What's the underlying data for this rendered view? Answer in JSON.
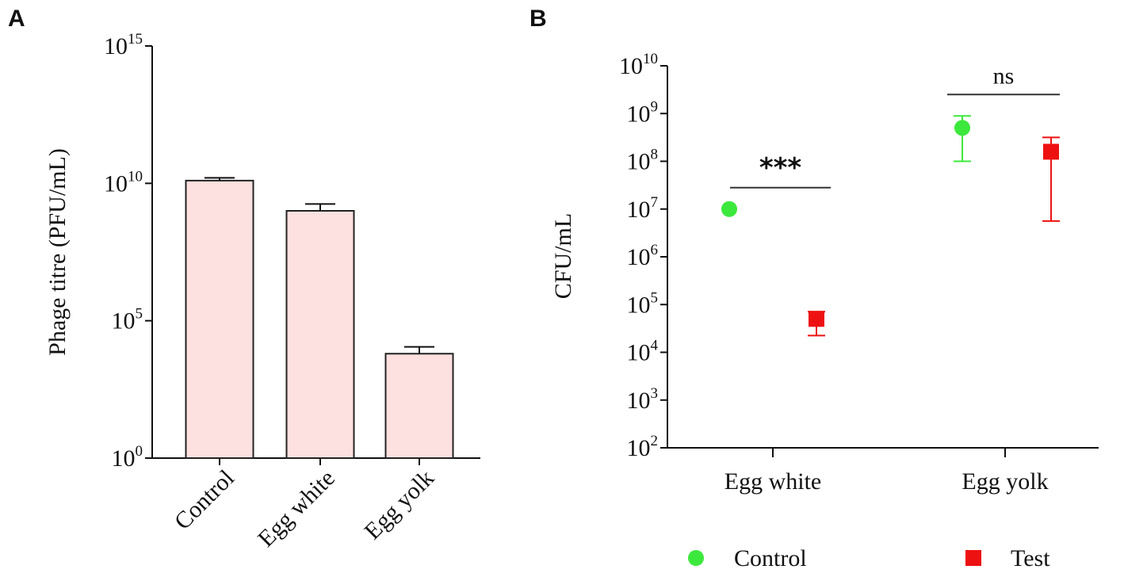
{
  "panels": {
    "a": {
      "label": "A"
    },
    "b": {
      "label": "B"
    }
  },
  "chart_data": [
    {
      "id": "A",
      "type": "bar",
      "title": "",
      "xlabel": "",
      "ylabel": "Phage titre (PFU/mL)",
      "yscale": "log10",
      "ylim_exponent": [
        0,
        15
      ],
      "yticks": [
        {
          "base": "10",
          "exp": "0",
          "value_exponent": 0
        },
        {
          "base": "10",
          "exp": "5",
          "value_exponent": 5
        },
        {
          "base": "10",
          "exp": "10",
          "value_exponent": 10
        },
        {
          "base": "10",
          "exp": "15",
          "value_exponent": 15
        }
      ],
      "categories": [
        "Control",
        "Egg white",
        "Egg yolk"
      ],
      "values_exponent": [
        10.1,
        9.0,
        3.8
      ],
      "error_upper_exponent": [
        10.2,
        9.25,
        4.05
      ],
      "bar_fill": "#fde0e0",
      "bar_stroke": "#222222"
    },
    {
      "id": "B",
      "type": "scatter",
      "title": "",
      "xlabel": "",
      "ylabel": "CFU/mL",
      "yscale": "log10",
      "ylim_exponent": [
        2,
        10
      ],
      "yticks": [
        {
          "base": "10",
          "exp": "2",
          "value_exponent": 2
        },
        {
          "base": "10",
          "exp": "3",
          "value_exponent": 3
        },
        {
          "base": "10",
          "exp": "4",
          "value_exponent": 4
        },
        {
          "base": "10",
          "exp": "5",
          "value_exponent": 5
        },
        {
          "base": "10",
          "exp": "6",
          "value_exponent": 6
        },
        {
          "base": "10",
          "exp": "7",
          "value_exponent": 7
        },
        {
          "base": "10",
          "exp": "8",
          "value_exponent": 8
        },
        {
          "base": "10",
          "exp": "9",
          "value_exponent": 9
        },
        {
          "base": "10",
          "exp": "10",
          "value_exponent": 10
        }
      ],
      "categories": [
        "Egg white",
        "Egg yolk"
      ],
      "series": [
        {
          "name": "Control",
          "marker": "circle",
          "color": "#3de83d",
          "values_exponent": [
            7.0,
            8.7
          ],
          "error_low_exponent": [
            7.0,
            8.0
          ],
          "error_high_exponent": [
            7.0,
            8.95
          ]
        },
        {
          "name": "Test",
          "marker": "square",
          "color": "#ee1111",
          "values_exponent": [
            4.7,
            8.2
          ],
          "error_low_exponent": [
            4.35,
            6.75
          ],
          "error_high_exponent": [
            4.85,
            8.5
          ]
        }
      ],
      "significance": [
        {
          "category_index": 0,
          "label": "***"
        },
        {
          "category_index": 1,
          "label": "ns"
        }
      ],
      "legend_position": "bottom"
    }
  ]
}
